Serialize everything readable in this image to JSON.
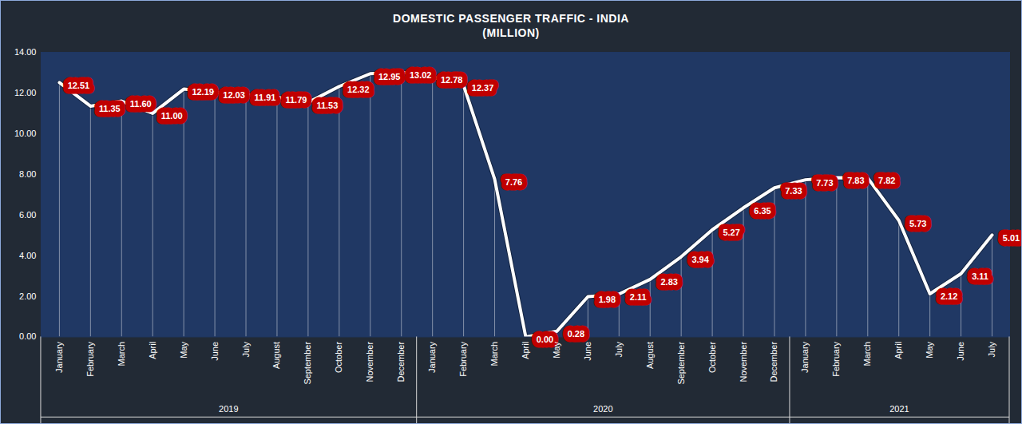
{
  "chart_data": {
    "type": "line",
    "title": "DOMESTIC PASSENGER TRAFFIC - INDIA",
    "subtitle": "(MILLION)",
    "categories": [
      "January",
      "February",
      "March",
      "April",
      "May",
      "June",
      "July",
      "August",
      "September",
      "October",
      "November",
      "December",
      "January",
      "February",
      "March",
      "April",
      "May",
      "June",
      "July",
      "August",
      "September",
      "October",
      "November",
      "December",
      "January",
      "February",
      "March",
      "April",
      "May",
      "June",
      "July"
    ],
    "category_groups": [
      "2019",
      "2019",
      "2019",
      "2019",
      "2019",
      "2019",
      "2019",
      "2019",
      "2019",
      "2019",
      "2019",
      "2019",
      "2020",
      "2020",
      "2020",
      "2020",
      "2020",
      "2020",
      "2020",
      "2020",
      "2020",
      "2020",
      "2020",
      "2020",
      "2021",
      "2021",
      "2021",
      "2021",
      "2021",
      "2021",
      "2021"
    ],
    "values": [
      12.51,
      11.35,
      11.6,
      11.0,
      12.19,
      12.03,
      11.91,
      11.79,
      11.53,
      12.32,
      12.95,
      13.02,
      12.78,
      12.37,
      7.76,
      0.0,
      0.28,
      1.98,
      2.11,
      2.83,
      3.94,
      5.27,
      6.35,
      7.33,
      7.73,
      7.83,
      7.82,
      5.73,
      2.12,
      3.11,
      5.01
    ],
    "value_labels": [
      "12.51",
      "11.35",
      "11.60",
      "11.00",
      "12.19",
      "12.03",
      "11.91",
      "11.79",
      "11.53",
      "12.32",
      "12.95",
      "13.02",
      "12.78",
      "12.37",
      "7.76",
      "0.00",
      "0.28",
      "1.98",
      "2.11",
      "2.83",
      "3.94",
      "5.27",
      "6.35",
      "7.33",
      "7.73",
      "7.83",
      "7.82",
      "5.73",
      "2.12",
      "3.11",
      "5.01"
    ],
    "color": "#ffffff",
    "ylim": [
      0,
      14
    ],
    "yticks": [
      {
        "value": 0,
        "label": "0.00"
      },
      {
        "value": 2,
        "label": "2.00"
      },
      {
        "value": 4,
        "label": "4.00"
      },
      {
        "value": 6,
        "label": "6.00"
      },
      {
        "value": 8,
        "label": "8.00"
      },
      {
        "value": 10,
        "label": "10.00"
      },
      {
        "value": 12,
        "label": "12.00"
      },
      {
        "value": 14,
        "label": "14.00"
      }
    ],
    "grid": false,
    "data_labels": true
  }
}
